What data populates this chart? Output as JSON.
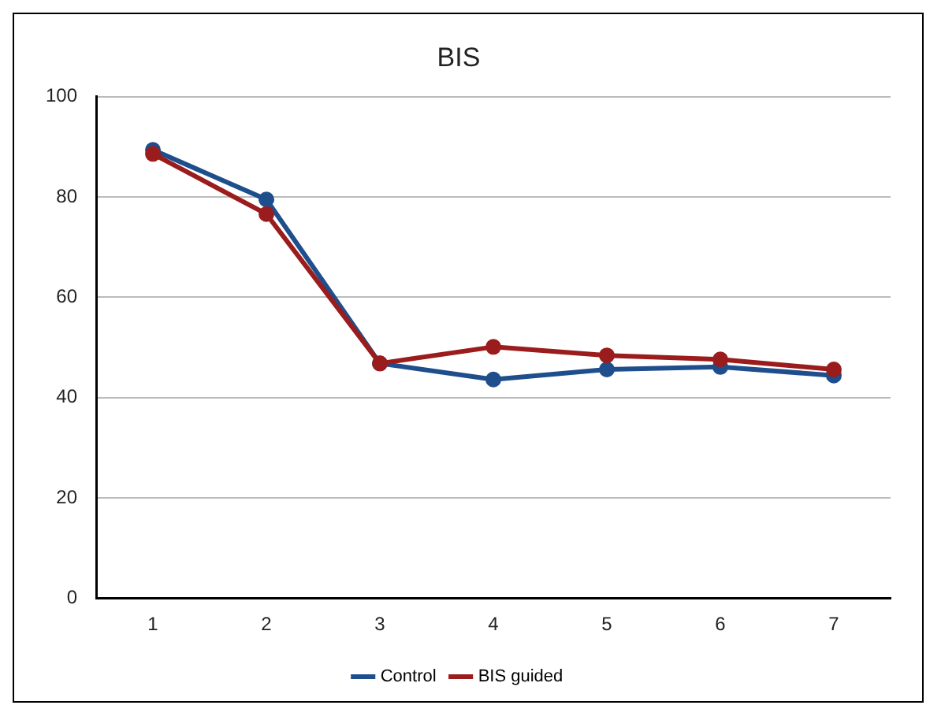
{
  "chart_data": {
    "type": "line",
    "title": "BIS",
    "categories": [
      "1",
      "2",
      "3",
      "4",
      "5",
      "6",
      "7"
    ],
    "series": [
      {
        "name": "Control",
        "color": "#1f4e8c",
        "values": [
          89.4,
          79.5,
          46.8,
          43.6,
          45.6,
          46.1,
          44.4
        ]
      },
      {
        "name": "BIS guided",
        "color": "#9b1c1c",
        "values": [
          88.6,
          76.6,
          46.8,
          50.1,
          48.4,
          47.6,
          45.6
        ]
      }
    ],
    "ylim": [
      0,
      100
    ],
    "yticks": [
      0,
      20,
      40,
      60,
      80,
      100
    ],
    "grid": "y",
    "legend": "bottom",
    "marker": "circle",
    "line_style": "solid"
  }
}
